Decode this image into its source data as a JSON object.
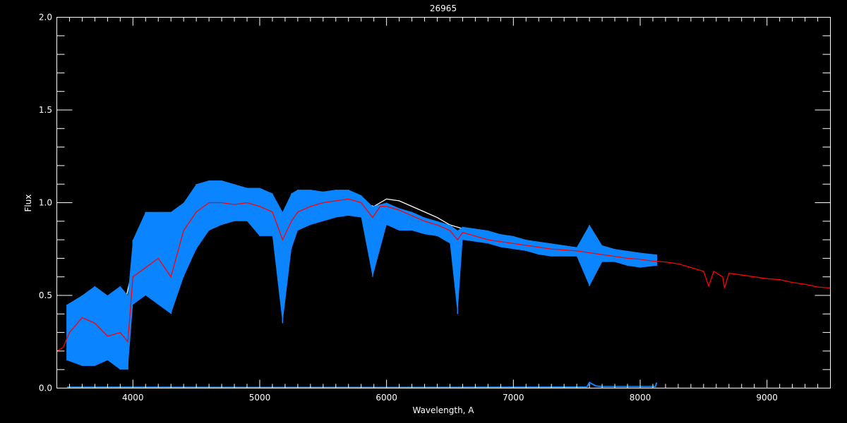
{
  "chart_data": {
    "type": "line",
    "title": "26965",
    "xlabel": "Wavelength, A",
    "ylabel": "Flux",
    "xlim": [
      3400,
      9500
    ],
    "ylim": [
      0.0,
      2.0
    ],
    "x_ticks": [
      "4000",
      "5000",
      "6000",
      "7000",
      "8000",
      "9000"
    ],
    "x_tick_values": [
      4000,
      5000,
      6000,
      7000,
      8000,
      9000
    ],
    "y_ticks": [
      "0.0",
      "0.5",
      "1.0",
      "1.5",
      "2.0"
    ],
    "y_tick_values": [
      0.0,
      0.5,
      1.0,
      1.5,
      2.0
    ],
    "grid": false,
    "colors": {
      "background": "#000000",
      "axes": "#ffffff",
      "observed": "#0a84ff",
      "comparison": "#ffffff",
      "model": "#ff0000",
      "error": "#0a84ff"
    },
    "series": [
      {
        "key": "comparison",
        "style": "line",
        "points": [
          [
            3480,
            0.3
          ],
          [
            3600,
            0.35
          ],
          [
            3700,
            0.38
          ],
          [
            3800,
            0.3
          ],
          [
            3900,
            0.35
          ],
          [
            4000,
            0.65
          ],
          [
            4100,
            0.75
          ],
          [
            4200,
            0.75
          ],
          [
            4300,
            0.7
          ],
          [
            4400,
            0.85
          ],
          [
            4500,
            0.95
          ],
          [
            4600,
            0.98
          ],
          [
            4700,
            1.0
          ],
          [
            4800,
            1.0
          ],
          [
            4900,
            0.99
          ],
          [
            5000,
            0.98
          ],
          [
            5100,
            0.96
          ],
          [
            5200,
            0.9
          ],
          [
            5300,
            0.97
          ],
          [
            5400,
            0.99
          ],
          [
            5500,
            1.0
          ],
          [
            5600,
            1.01
          ],
          [
            5700,
            1.02
          ],
          [
            5800,
            1.0
          ],
          [
            5900,
            0.98
          ],
          [
            6000,
            1.02
          ],
          [
            6100,
            1.01
          ],
          [
            6200,
            0.98
          ],
          [
            6300,
            0.95
          ],
          [
            6400,
            0.92
          ],
          [
            6500,
            0.88
          ],
          [
            6600,
            0.86
          ],
          [
            6700,
            0.83
          ],
          [
            6800,
            0.8
          ],
          [
            6900,
            0.79
          ],
          [
            7000,
            0.78
          ],
          [
            7100,
            0.77
          ],
          [
            7200,
            0.76
          ],
          [
            7300,
            0.75
          ],
          [
            7400,
            0.745
          ],
          [
            7500,
            0.74
          ],
          [
            7600,
            0.73
          ],
          [
            7700,
            0.72
          ],
          [
            7800,
            0.71
          ],
          [
            7900,
            0.7
          ],
          [
            8000,
            0.695
          ],
          [
            8130,
            0.69
          ]
        ]
      },
      {
        "key": "observed",
        "style": "band",
        "points": [
          [
            3480,
            0.15,
            0.45
          ],
          [
            3600,
            0.12,
            0.5
          ],
          [
            3700,
            0.12,
            0.55
          ],
          [
            3800,
            0.15,
            0.5
          ],
          [
            3900,
            0.1,
            0.55
          ],
          [
            3960,
            0.1,
            0.5
          ],
          [
            4000,
            0.45,
            0.8
          ],
          [
            4100,
            0.5,
            0.95
          ],
          [
            4200,
            0.45,
            0.95
          ],
          [
            4300,
            0.4,
            0.95
          ],
          [
            4400,
            0.6,
            1.0
          ],
          [
            4500,
            0.75,
            1.1
          ],
          [
            4600,
            0.85,
            1.12
          ],
          [
            4700,
            0.88,
            1.12
          ],
          [
            4800,
            0.9,
            1.1
          ],
          [
            4900,
            0.9,
            1.08
          ],
          [
            5000,
            0.82,
            1.08
          ],
          [
            5100,
            0.82,
            1.05
          ],
          [
            5180,
            0.35,
            0.95
          ],
          [
            5250,
            0.75,
            1.05
          ],
          [
            5300,
            0.85,
            1.07
          ],
          [
            5400,
            0.88,
            1.07
          ],
          [
            5500,
            0.9,
            1.06
          ],
          [
            5600,
            0.92,
            1.07
          ],
          [
            5700,
            0.93,
            1.07
          ],
          [
            5800,
            0.92,
            1.04
          ],
          [
            5890,
            0.6,
            0.98
          ],
          [
            6000,
            0.88,
            1.0
          ],
          [
            6100,
            0.85,
            0.97
          ],
          [
            6200,
            0.85,
            0.95
          ],
          [
            6300,
            0.83,
            0.92
          ],
          [
            6400,
            0.82,
            0.9
          ],
          [
            6500,
            0.78,
            0.88
          ],
          [
            6560,
            0.4,
            0.85
          ],
          [
            6600,
            0.8,
            0.87
          ],
          [
            6700,
            0.79,
            0.86
          ],
          [
            6800,
            0.78,
            0.85
          ],
          [
            6900,
            0.76,
            0.83
          ],
          [
            7000,
            0.75,
            0.82
          ],
          [
            7100,
            0.74,
            0.8
          ],
          [
            7200,
            0.72,
            0.79
          ],
          [
            7300,
            0.71,
            0.78
          ],
          [
            7400,
            0.71,
            0.77
          ],
          [
            7500,
            0.71,
            0.76
          ],
          [
            7600,
            0.55,
            0.88
          ],
          [
            7700,
            0.68,
            0.77
          ],
          [
            7800,
            0.68,
            0.75
          ],
          [
            7900,
            0.66,
            0.74
          ],
          [
            8000,
            0.65,
            0.73
          ],
          [
            8130,
            0.66,
            0.72
          ]
        ]
      },
      {
        "key": "model",
        "style": "line",
        "points": [
          [
            3400,
            0.2
          ],
          [
            3450,
            0.22
          ],
          [
            3500,
            0.3
          ],
          [
            3600,
            0.38
          ],
          [
            3700,
            0.35
          ],
          [
            3800,
            0.28
          ],
          [
            3900,
            0.3
          ],
          [
            3960,
            0.25
          ],
          [
            4000,
            0.6
          ],
          [
            4100,
            0.65
          ],
          [
            4200,
            0.7
          ],
          [
            4300,
            0.6
          ],
          [
            4400,
            0.85
          ],
          [
            4500,
            0.95
          ],
          [
            4600,
            1.0
          ],
          [
            4700,
            1.0
          ],
          [
            4800,
            0.99
          ],
          [
            4900,
            1.0
          ],
          [
            5000,
            0.98
          ],
          [
            5100,
            0.95
          ],
          [
            5180,
            0.8
          ],
          [
            5250,
            0.9
          ],
          [
            5300,
            0.95
          ],
          [
            5400,
            0.98
          ],
          [
            5500,
            1.0
          ],
          [
            5600,
            1.01
          ],
          [
            5700,
            1.02
          ],
          [
            5800,
            1.0
          ],
          [
            5890,
            0.92
          ],
          [
            5950,
            0.98
          ],
          [
            6000,
            0.98
          ],
          [
            6100,
            0.96
          ],
          [
            6200,
            0.93
          ],
          [
            6300,
            0.9
          ],
          [
            6400,
            0.88
          ],
          [
            6500,
            0.85
          ],
          [
            6560,
            0.8
          ],
          [
            6600,
            0.84
          ],
          [
            6700,
            0.82
          ],
          [
            6800,
            0.8
          ],
          [
            6900,
            0.79
          ],
          [
            7000,
            0.78
          ],
          [
            7100,
            0.77
          ],
          [
            7200,
            0.76
          ],
          [
            7300,
            0.75
          ],
          [
            7400,
            0.745
          ],
          [
            7500,
            0.74
          ],
          [
            7600,
            0.73
          ],
          [
            7700,
            0.72
          ],
          [
            7800,
            0.71
          ],
          [
            7900,
            0.7
          ],
          [
            8000,
            0.695
          ],
          [
            8100,
            0.685
          ],
          [
            8200,
            0.68
          ],
          [
            8300,
            0.67
          ],
          [
            8400,
            0.65
          ],
          [
            8500,
            0.63
          ],
          [
            8540,
            0.55
          ],
          [
            8580,
            0.63
          ],
          [
            8650,
            0.6
          ],
          [
            8665,
            0.54
          ],
          [
            8700,
            0.62
          ],
          [
            8800,
            0.61
          ],
          [
            8900,
            0.6
          ],
          [
            9000,
            0.59
          ],
          [
            9100,
            0.585
          ],
          [
            9200,
            0.57
          ],
          [
            9300,
            0.56
          ],
          [
            9400,
            0.545
          ],
          [
            9500,
            0.54
          ]
        ]
      },
      {
        "key": "error",
        "style": "line",
        "points": [
          [
            3480,
            0.005
          ],
          [
            4000,
            0.005
          ],
          [
            5000,
            0.004
          ],
          [
            6000,
            0.004
          ],
          [
            7000,
            0.005
          ],
          [
            7580,
            0.006
          ],
          [
            7600,
            0.03
          ],
          [
            7650,
            0.012
          ],
          [
            7700,
            0.008
          ],
          [
            8120,
            0.008
          ],
          [
            8130,
            0.03
          ]
        ]
      }
    ]
  }
}
